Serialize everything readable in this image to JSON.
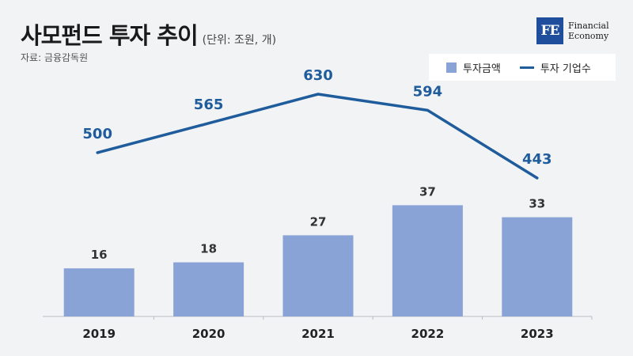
{
  "header": {
    "title": "사모펀드 투자 추이",
    "unit": "(단위: 조원, 개)",
    "source": "자료: 금융감독원"
  },
  "logo": {
    "mark": "FE",
    "line1": "Financial",
    "line2": "Economy"
  },
  "chart_data": {
    "type": "bar",
    "categories": [
      "2019",
      "2020",
      "2021",
      "2022",
      "2023"
    ],
    "series": [
      {
        "name": "투자금액",
        "type": "bar",
        "values": [
          16,
          18,
          27,
          37,
          33
        ],
        "color": "#8aa3d6"
      },
      {
        "name": "투자 기업수",
        "type": "line",
        "values": [
          500,
          565,
          630,
          594,
          443
        ],
        "color": "#1f5c9c"
      }
    ],
    "legend_position": "top-right",
    "grid": false
  }
}
